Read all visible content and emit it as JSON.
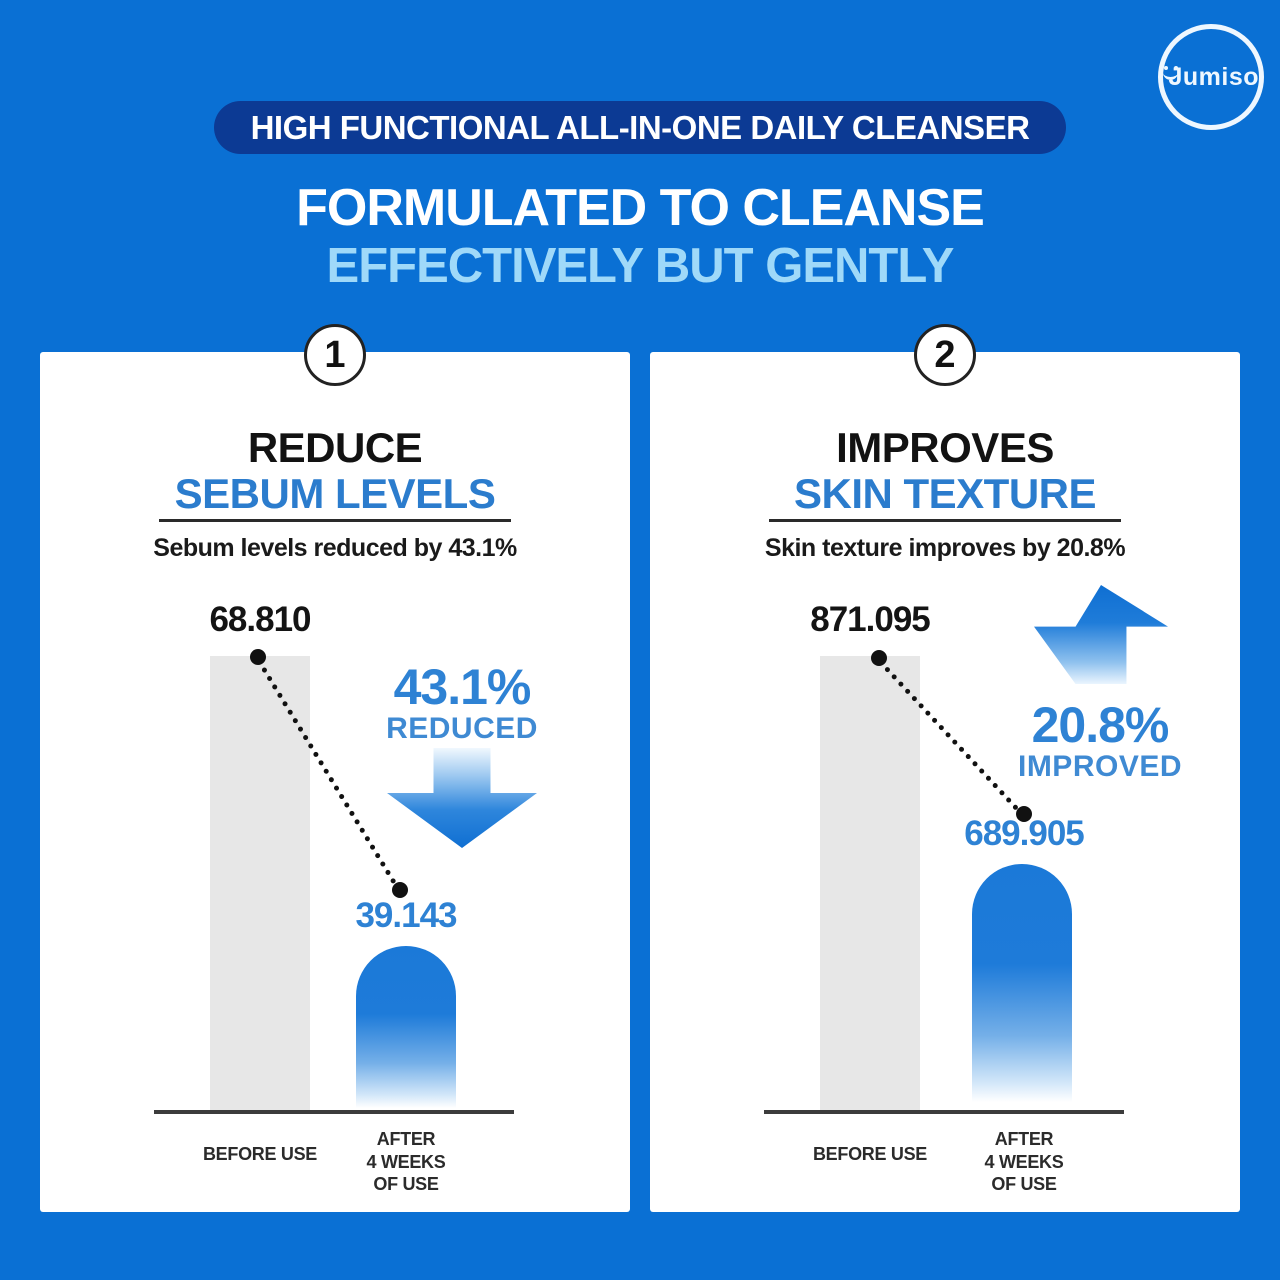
{
  "logo": {
    "brand": "Jumiso"
  },
  "header": {
    "banner": "HIGH FUNCTIONAL ALL-IN-ONE DAILY CLEANSER",
    "title_line1": "FORMULATED TO CLEANSE",
    "title_line2": "EFFECTIVELY BUT GENTLY"
  },
  "colors": {
    "background": "#0a70d4",
    "banner": "#0c3a94",
    "title_light_blue": "#9fd9f9",
    "accent_blue": "#2e82d4",
    "heading_blue": "#2b7ccd",
    "bar_gray": "#e7e7e7",
    "bar_blue": "#1b79d8"
  },
  "cards": [
    {
      "number": "1",
      "heading_black": "REDUCE",
      "heading_blue": "SEBUM LEVELS",
      "subtitle": "Sebum levels reduced by 43.1%",
      "before_value": "68.810",
      "after_value": "39.143",
      "percent": "43.1%",
      "percent_word": "REDUCED",
      "arrow_icon": "arrow-down",
      "x_label_before": "BEFORE USE",
      "x_label_after": "AFTER\n4 WEEKS\nOF USE"
    },
    {
      "number": "2",
      "heading_black": "IMPROVES",
      "heading_blue": "SKIN TEXTURE",
      "subtitle": "Skin texture improves by 20.8%",
      "before_value": "871.095",
      "after_value": "689.905",
      "percent": "20.8%",
      "percent_word": "IMPROVED",
      "arrow_icon": "arrow-up",
      "x_label_before": "BEFORE USE",
      "x_label_after": "AFTER\n4 WEEKS\nOF USE"
    }
  ],
  "chart_data": [
    {
      "type": "bar",
      "title": "REDUCE SEBUM LEVELS",
      "subtitle": "Sebum levels reduced by 43.1%",
      "categories": [
        "BEFORE USE",
        "AFTER 4 WEEKS OF USE"
      ],
      "values": [
        68.81,
        39.143
      ],
      "data_labels": [
        "68.810",
        "39.143"
      ],
      "annotation": "43.1% REDUCED",
      "bar_colors": [
        "#e7e7e7",
        "#1b79d8"
      ],
      "ylim": [
        0,
        80
      ],
      "grid": false,
      "legend": false
    },
    {
      "type": "bar",
      "title": "IMPROVES SKIN TEXTURE",
      "subtitle": "Skin texture improves by 20.8%",
      "categories": [
        "BEFORE USE",
        "AFTER 4 WEEKS OF USE"
      ],
      "values": [
        871.095,
        689.905
      ],
      "data_labels": [
        "871.095",
        "689.905"
      ],
      "annotation": "20.8% IMPROVED",
      "bar_colors": [
        "#e7e7e7",
        "#1b79d8"
      ],
      "ylim": [
        0,
        1000
      ],
      "grid": false,
      "legend": false
    }
  ]
}
